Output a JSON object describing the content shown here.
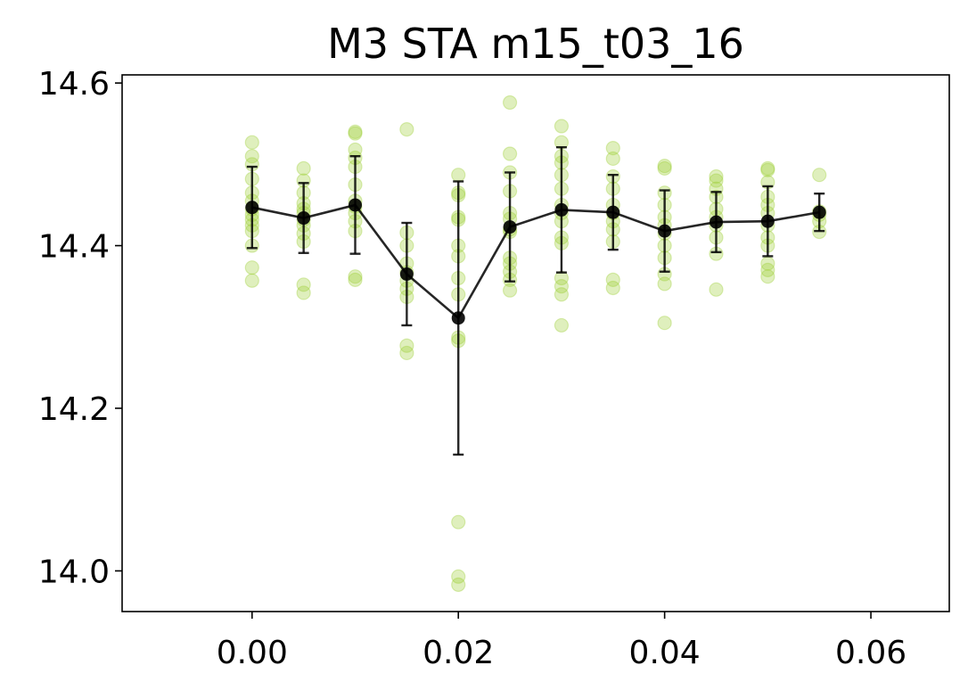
{
  "chart_data": {
    "type": "scatter",
    "title": "M3 STA m15_t03_16",
    "xlabel": "",
    "ylabel": "",
    "xlim": [
      -0.0126,
      0.0676
    ],
    "ylim": [
      13.95,
      14.61
    ],
    "grid": false,
    "legend": "none",
    "x_ticks": [
      {
        "value": 0.0,
        "label": "0.00"
      },
      {
        "value": 0.02,
        "label": "0.02"
      },
      {
        "value": 0.04,
        "label": "0.04"
      },
      {
        "value": 0.06,
        "label": "0.06"
      }
    ],
    "y_ticks": [
      {
        "value": 14.0,
        "label": "14.0"
      },
      {
        "value": 14.2,
        "label": "14.2"
      },
      {
        "value": 14.4,
        "label": "14.4"
      },
      {
        "value": 14.6,
        "label": "14.6"
      }
    ],
    "colors": {
      "raw_points": "#9acd32",
      "mean_line": "#000000",
      "axes": "#000000"
    },
    "raw_points": [
      {
        "x": 0.0,
        "y": [
          14.527,
          14.51,
          14.5,
          14.482,
          14.465,
          14.455,
          14.445,
          14.438,
          14.432,
          14.425,
          14.418,
          14.4,
          14.373,
          14.357
        ]
      },
      {
        "x": 0.005,
        "y": [
          14.495,
          14.48,
          14.465,
          14.452,
          14.445,
          14.44,
          14.432,
          14.425,
          14.415,
          14.405,
          14.352,
          14.342
        ]
      },
      {
        "x": 0.01,
        "y": [
          14.54,
          14.538,
          14.518,
          14.508,
          14.497,
          14.475,
          14.455,
          14.448,
          14.44,
          14.43,
          14.418,
          14.362,
          14.358
        ]
      },
      {
        "x": 0.015,
        "y": [
          14.543,
          14.416,
          14.4,
          14.378,
          14.367,
          14.357,
          14.347,
          14.337,
          14.277,
          14.268
        ]
      },
      {
        "x": 0.02,
        "y": [
          14.487,
          14.465,
          14.462,
          14.435,
          14.432,
          14.4,
          14.387,
          14.36,
          14.34,
          14.287,
          14.283,
          14.06,
          13.993,
          13.983
        ]
      },
      {
        "x": 0.025,
        "y": [
          14.576,
          14.513,
          14.49,
          14.467,
          14.44,
          14.433,
          14.42,
          14.417,
          14.385,
          14.378,
          14.368,
          14.358,
          14.345
        ]
      },
      {
        "x": 0.03,
        "y": [
          14.547,
          14.527,
          14.51,
          14.502,
          14.487,
          14.47,
          14.45,
          14.44,
          14.43,
          14.41,
          14.403,
          14.36,
          14.35,
          14.34,
          14.302
        ]
      },
      {
        "x": 0.035,
        "y": [
          14.52,
          14.507,
          14.485,
          14.47,
          14.45,
          14.44,
          14.43,
          14.42,
          14.405,
          14.358,
          14.348
        ]
      },
      {
        "x": 0.04,
        "y": [
          14.498,
          14.495,
          14.465,
          14.45,
          14.435,
          14.425,
          14.415,
          14.4,
          14.385,
          14.365,
          14.353,
          14.305
        ]
      },
      {
        "x": 0.045,
        "y": [
          14.485,
          14.48,
          14.47,
          14.46,
          14.445,
          14.435,
          14.425,
          14.41,
          14.39,
          14.346
        ]
      },
      {
        "x": 0.05,
        "y": [
          14.495,
          14.493,
          14.478,
          14.46,
          14.45,
          14.44,
          14.425,
          14.41,
          14.4,
          14.378,
          14.37,
          14.362
        ]
      },
      {
        "x": 0.055,
        "y": [
          14.487,
          14.442,
          14.438,
          14.43,
          14.417
        ]
      }
    ],
    "series": [
      {
        "x": [
          0.0,
          0.005,
          0.01,
          0.015,
          0.02,
          0.025,
          0.03,
          0.035,
          0.04,
          0.045,
          0.05,
          0.055
        ],
        "y": [
          14.447,
          14.434,
          14.45,
          14.365,
          14.311,
          14.423,
          14.444,
          14.441,
          14.418,
          14.429,
          14.43,
          14.441
        ],
        "yerr": [
          0.05,
          0.043,
          0.06,
          0.063,
          0.168,
          0.067,
          0.077,
          0.046,
          0.05,
          0.037,
          0.043,
          0.023
        ]
      }
    ]
  }
}
